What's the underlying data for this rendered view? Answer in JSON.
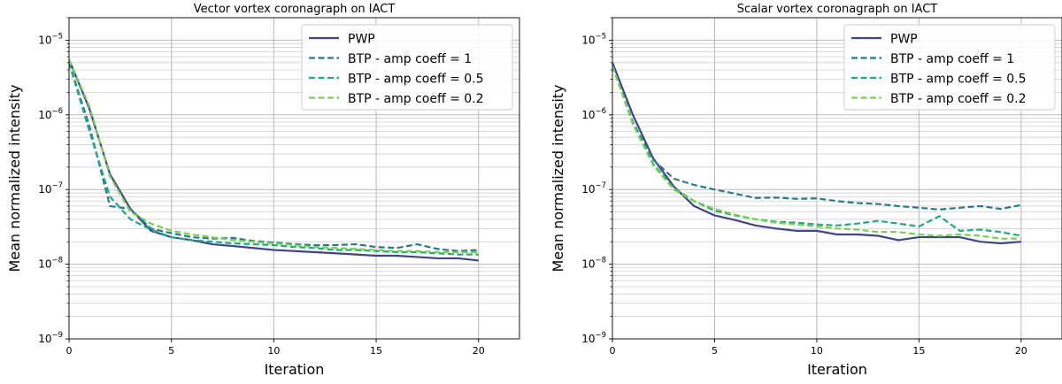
{
  "chart_data": [
    {
      "type": "line",
      "title": "Vector vortex coronagraph on IACT",
      "xlabel": "Iteration",
      "ylabel": "Mean normalized intensity",
      "xlim": [
        0,
        22
      ],
      "ylim": [
        1e-09,
        2e-05
      ],
      "yscale": "log",
      "xticks": [
        "0",
        "5",
        "10",
        "15",
        "20"
      ],
      "yticks": [
        {
          "base": "10",
          "exp": "−9"
        },
        {
          "base": "10",
          "exp": "−8"
        },
        {
          "base": "10",
          "exp": "−7"
        },
        {
          "base": "10",
          "exp": "−6"
        },
        {
          "base": "10",
          "exp": "−5"
        }
      ],
      "grid": true,
      "legend_position": "top-right",
      "x": [
        0,
        1,
        2,
        3,
        4,
        5,
        6,
        7,
        8,
        9,
        10,
        11,
        12,
        13,
        14,
        15,
        16,
        17,
        18,
        19,
        20
      ],
      "series": [
        {
          "name": "PWP",
          "color": "#414487",
          "style": "solid",
          "values": [
            5.5e-06,
            1.2e-06,
            1.6e-07,
            5.5e-08,
            2.8e-08,
            2.3e-08,
            2.1e-08,
            1.85e-08,
            1.75e-08,
            1.65e-08,
            1.55e-08,
            1.5e-08,
            1.45e-08,
            1.4e-08,
            1.35e-08,
            1.3e-08,
            1.3e-08,
            1.25e-08,
            1.2e-08,
            1.2e-08,
            1.12e-08
          ]
        },
        {
          "name": "BTP - amp coeff = 1",
          "color": "#2a788e",
          "style": "dashed",
          "values": [
            5e-06,
            7e-07,
            6e-08,
            5.5e-08,
            3e-08,
            2.6e-08,
            2.3e-08,
            2.2e-08,
            2.25e-08,
            2.05e-08,
            1.95e-08,
            1.85e-08,
            1.8e-08,
            1.8e-08,
            1.85e-08,
            1.7e-08,
            1.65e-08,
            1.85e-08,
            1.6e-08,
            1.5e-08,
            1.55e-08
          ]
        },
        {
          "name": "BTP - amp coeff = 0.5",
          "color": "#22a884",
          "style": "dashed",
          "values": [
            5e-06,
            6e-07,
            8e-08,
            4e-08,
            2.9e-08,
            2.3e-08,
            2.1e-08,
            2e-08,
            1.9e-08,
            1.85e-08,
            1.8e-08,
            1.7e-08,
            1.65e-08,
            1.55e-08,
            1.55e-08,
            1.5e-08,
            1.45e-08,
            1.45e-08,
            1.4e-08,
            1.35e-08,
            1.35e-08
          ]
        },
        {
          "name": "BTP - amp coeff = 0.2",
          "color": "#7ad151",
          "style": "dashed",
          "values": [
            5.5e-06,
            1.3e-06,
            1.5e-07,
            5e-08,
            3.5e-08,
            2.8e-08,
            2.5e-08,
            2.3e-08,
            2.1e-08,
            2e-08,
            1.9e-08,
            1.8e-08,
            1.7e-08,
            1.65e-08,
            1.6e-08,
            1.55e-08,
            1.5e-08,
            1.5e-08,
            1.45e-08,
            1.45e-08,
            1.45e-08
          ]
        }
      ]
    },
    {
      "type": "line",
      "title": "Scalar vortex coronagraph on IACT",
      "xlabel": "Iteration",
      "ylabel": "Mean normalized intensity",
      "xlim": [
        0,
        22
      ],
      "ylim": [
        1e-09,
        2e-05
      ],
      "yscale": "log",
      "xticks": [
        "0",
        "5",
        "10",
        "15",
        "20"
      ],
      "yticks": [
        {
          "base": "10",
          "exp": "−9"
        },
        {
          "base": "10",
          "exp": "−8"
        },
        {
          "base": "10",
          "exp": "−7"
        },
        {
          "base": "10",
          "exp": "−6"
        },
        {
          "base": "10",
          "exp": "−5"
        }
      ],
      "grid": true,
      "legend_position": "top-right",
      "x": [
        0,
        1,
        2,
        3,
        4,
        5,
        6,
        7,
        8,
        9,
        10,
        11,
        12,
        13,
        14,
        15,
        16,
        17,
        18,
        19,
        20
      ],
      "series": [
        {
          "name": "PWP",
          "color": "#414487",
          "style": "solid",
          "values": [
            5e-06,
            1e-06,
            2.6e-07,
            1.1e-07,
            6e-08,
            4.5e-08,
            3.9e-08,
            3.3e-08,
            3e-08,
            2.8e-08,
            2.8e-08,
            2.5e-08,
            2.5e-08,
            2.4e-08,
            2.1e-08,
            2.3e-08,
            2.3e-08,
            2.3e-08,
            2e-08,
            1.9e-08,
            2e-08
          ]
        },
        {
          "name": "BTP - amp coeff = 1",
          "color": "#2a788e",
          "style": "dashed",
          "values": [
            4.5e-06,
            8e-07,
            2.5e-07,
            1.4e-07,
            1.15e-07,
            1e-07,
            8.8e-08,
            7.7e-08,
            7.8e-08,
            7.5e-08,
            7.6e-08,
            7e-08,
            6.6e-08,
            6.4e-08,
            6e-08,
            5.7e-08,
            5.4e-08,
            5.7e-08,
            6e-08,
            5.5e-08,
            6.2e-08
          ]
        },
        {
          "name": "BTP - amp coeff = 0.5",
          "color": "#22a884",
          "style": "dashed",
          "values": [
            4.5e-06,
            8e-07,
            2.2e-07,
            1.05e-07,
            7e-08,
            5.2e-08,
            4.5e-08,
            4e-08,
            3.7e-08,
            3.6e-08,
            3.4e-08,
            3.3e-08,
            3.5e-08,
            3.8e-08,
            3.5e-08,
            3.2e-08,
            4.4e-08,
            2.8e-08,
            2.9e-08,
            2.7e-08,
            2.4e-08
          ]
        },
        {
          "name": "BTP - amp coeff = 0.2",
          "color": "#7ad151",
          "style": "dashed",
          "values": [
            4.5e-06,
            7.5e-07,
            2.1e-07,
            1e-07,
            7e-08,
            5.5e-08,
            4.6e-08,
            4e-08,
            3.6e-08,
            3.4e-08,
            3.2e-08,
            3e-08,
            2.9e-08,
            2.7e-08,
            2.7e-08,
            2.5e-08,
            2.4e-08,
            2.5e-08,
            2.4e-08,
            2.2e-08,
            2.2e-08
          ]
        }
      ]
    }
  ]
}
